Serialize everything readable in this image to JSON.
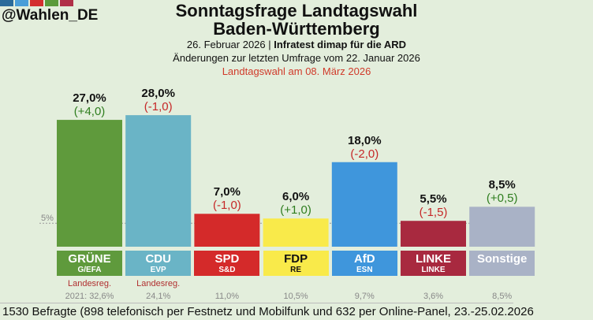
{
  "handle": "@Wahlen_DE",
  "logo_colors": [
    "#2a6b9a",
    "#4a9ed8",
    "#d32f2f",
    "#5a9a3a",
    "#b03048"
  ],
  "title_line1": "Sonntagsfrage Landtagswahl",
  "title_line2": "Baden-Württemberg",
  "date": "26. Februar 2026",
  "institute": "Infratest dimap für die ARD",
  "changes_note": "Änderungen zur letzten Umfrage vom 22. Januar 2026",
  "election_note": "Landtagswahl am 08. März 2026",
  "footer": "1530 Befragte (898 telefonisch per Festnetz und Mobilfunk und 632 per Online-Panel, 23.-25.02.2026",
  "chart_data": {
    "type": "bar",
    "categories": [
      "GRÜNE",
      "CDU",
      "SPD",
      "FDP",
      "AfD",
      "LINKE",
      "Sonstige"
    ],
    "groups": [
      "G/EFA",
      "EVP",
      "S&D",
      "RE",
      "ESN",
      "LINKE",
      ""
    ],
    "values": [
      27.0,
      28.0,
      7.0,
      6.0,
      18.0,
      5.5,
      8.5
    ],
    "value_labels": [
      "27,0%",
      "28,0%",
      "7,0%",
      "6,0%",
      "18,0%",
      "5,5%",
      "8,5%"
    ],
    "changes": [
      "(+4,0)",
      "(-1,0)",
      "(-1,0)",
      "(+1,0)",
      "(-2,0)",
      "(-1,5)",
      "(+0,5)"
    ],
    "colors": [
      "#5f9a3c",
      "#6ab4c6",
      "#d42a2a",
      "#f9ea4a",
      "#3f96dc",
      "#a8293f",
      "#a9b2c6"
    ],
    "label_text_colors": [
      "#fff",
      "#fff",
      "#fff",
      "#111",
      "#fff",
      "#fff",
      "#fff"
    ],
    "previous_2021": [
      "2021: 32,6%",
      "24,1%",
      "11,0%",
      "10,5%",
      "9,7%",
      "3,6%",
      "8,5%"
    ],
    "government_label": "Landesreg.",
    "government": [
      true,
      true,
      false,
      false,
      false,
      false,
      false
    ],
    "threshold_label": "5%",
    "threshold": 5,
    "ylim": [
      0,
      30
    ]
  }
}
